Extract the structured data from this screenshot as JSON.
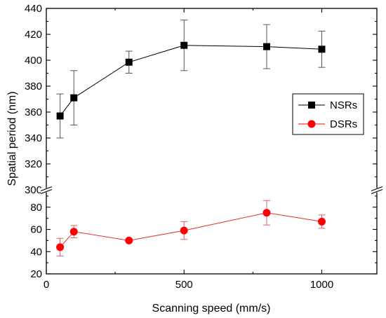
{
  "chart_data": {
    "type": "scatter",
    "xlabel": "Scanning speed (mm/s)",
    "ylabel": "Spatial period (nm)",
    "xlim": [
      0,
      1200
    ],
    "x_ticks": [
      "0",
      "500",
      "1000"
    ],
    "y_segments": [
      {
        "name": "upper",
        "ylim": [
          300,
          440
        ],
        "ticks": [
          "300",
          "320",
          "340",
          "360",
          "380",
          "400",
          "420",
          "440"
        ]
      },
      {
        "name": "lower",
        "ylim": [
          20,
          95
        ],
        "ticks": [
          "20",
          "40",
          "60",
          "80"
        ]
      }
    ],
    "axis_break": true,
    "grid": false,
    "legend_position": "right",
    "series": [
      {
        "name": "NSRs",
        "segment": "upper",
        "marker": "square",
        "color": "#000000",
        "x": [
          50,
          100,
          300,
          500,
          800,
          1000
        ],
        "y": [
          357,
          371,
          398.5,
          411.5,
          410.5,
          408.5
        ],
        "err_low": [
          17,
          21,
          8.5,
          19.5,
          17,
          14
        ],
        "err_high": [
          17,
          21,
          8.5,
          19.5,
          17,
          14
        ]
      },
      {
        "name": "DSRs",
        "segment": "lower",
        "marker": "circle",
        "color": "#ff0000",
        "x": [
          50,
          100,
          300,
          500,
          800,
          1000
        ],
        "y": [
          44,
          58,
          50,
          59,
          75,
          67
        ],
        "err_low": [
          8,
          5.5,
          0,
          8,
          11,
          6
        ],
        "err_high": [
          8,
          5.5,
          0,
          8,
          11,
          6
        ]
      }
    ]
  },
  "colors": {
    "nsr": "#000000",
    "dsr": "#ff0000",
    "nsr_error": "#555555",
    "dsr_error": "#e06060",
    "dsr_line": "#e03030"
  }
}
